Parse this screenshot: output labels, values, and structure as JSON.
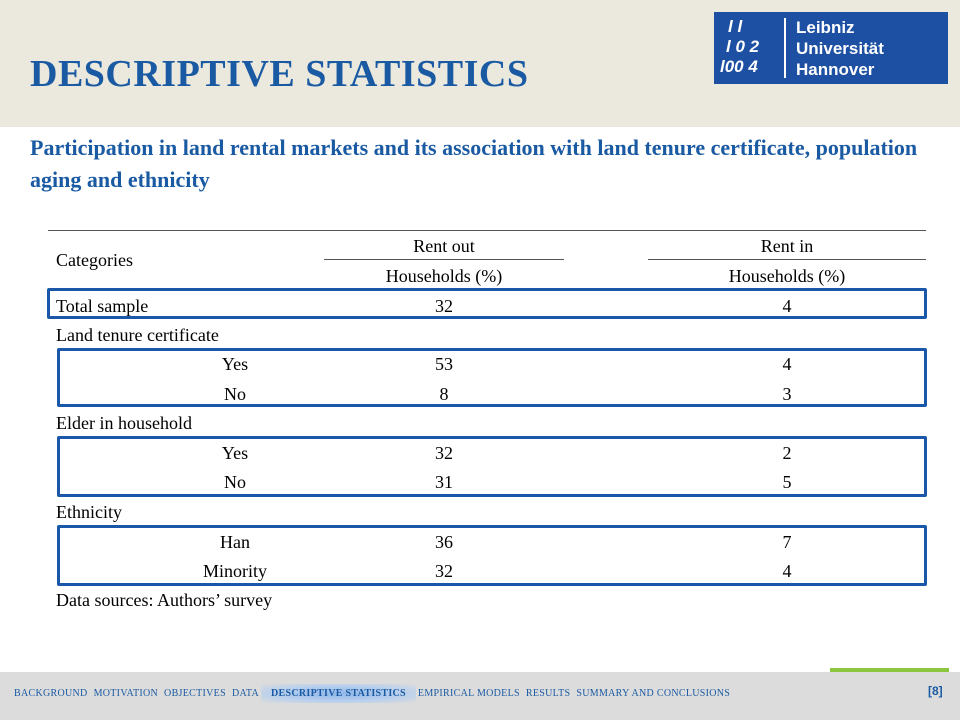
{
  "slide": {
    "title": "DESCRIPTIVE STATISTICS",
    "subtitle": "Participation in land rental markets and its association with land tenure certificate, population aging and ethnicity",
    "page_number": "[8]"
  },
  "logo": {
    "line1": "Leibniz",
    "line2": "Universität",
    "line3": "Hannover",
    "mark_rows": [
      "l l",
      "l 0 2",
      "l00 4"
    ]
  },
  "table": {
    "header": {
      "categories": "Categories",
      "rent_out": "Rent out",
      "rent_in": "Rent in",
      "rent_out_unit": "Households (%)",
      "rent_in_unit": "Households (%)"
    },
    "total": {
      "label": "Total sample",
      "rent_out": "32",
      "rent_in": "4"
    },
    "groups": [
      {
        "label": "Land tenure certificate",
        "rows": [
          {
            "label": "Yes",
            "rent_out": "53",
            "rent_in": "4"
          },
          {
            "label": "No",
            "rent_out": "8",
            "rent_in": "3"
          }
        ]
      },
      {
        "label": "Elder in household",
        "rows": [
          {
            "label": "Yes",
            "rent_out": "32",
            "rent_in": "2"
          },
          {
            "label": "No",
            "rent_out": "31",
            "rent_in": "5"
          }
        ]
      },
      {
        "label": "Ethnicity",
        "rows": [
          {
            "label": "Han",
            "rent_out": "36",
            "rent_in": "7"
          },
          {
            "label": "Minority",
            "rent_out": "32",
            "rent_in": "4"
          }
        ]
      }
    ],
    "source": "Data sources: Authors’ survey"
  },
  "nav": {
    "items": [
      "BACKGROUND",
      "MOTIVATION",
      "OBJECTIVES",
      "DATA",
      "DESCRIPTIVE STATISTICS",
      "EMPIRICAL MODELS",
      "RESULTS",
      "SUMMARY AND CONCLUSIONS"
    ],
    "active": "DESCRIPTIVE STATISTICS"
  },
  "colors": {
    "accent": "#1a5aa3",
    "header_bg": "#ebe8de",
    "footer_bg": "#dcdcdc",
    "highlight_border": "#1a57a8",
    "footer_accent": "#8cc63f"
  }
}
